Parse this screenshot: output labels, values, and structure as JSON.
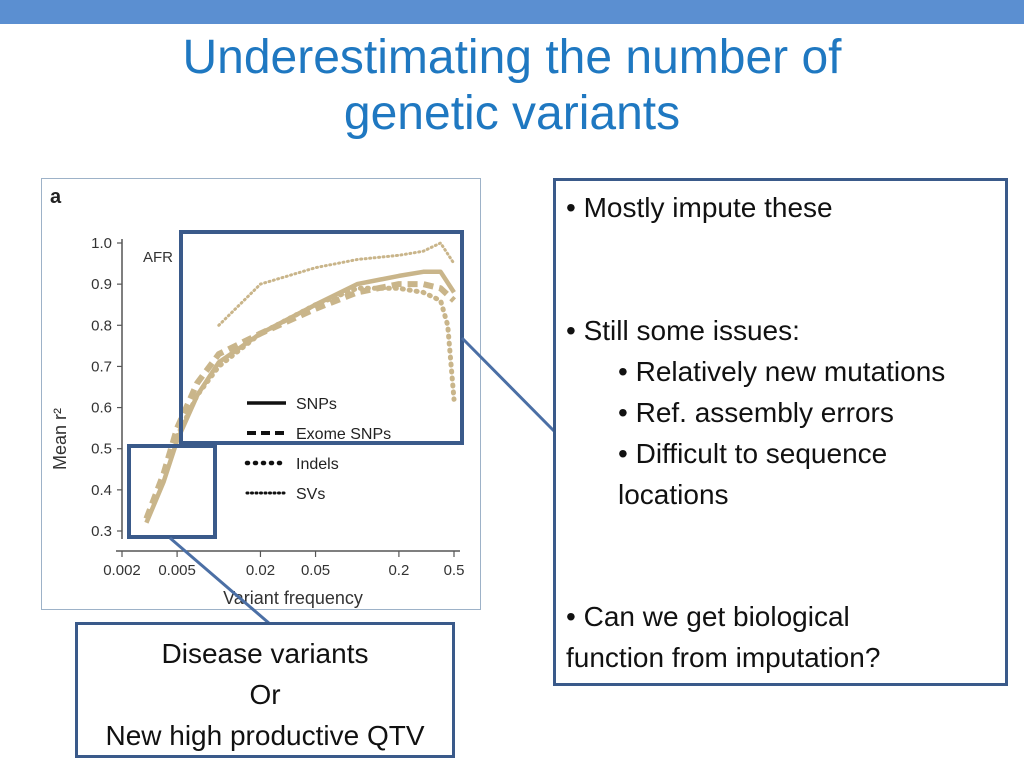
{
  "slide": {
    "title_line1": "Underestimating the number of",
    "title_line2": "genetic variants"
  },
  "right_box": {
    "bullet1": "Mostly impute these",
    "bullet2": "Still some issues:",
    "sub1": "Relatively new mutations",
    "sub2": "Ref. assembly errors",
    "sub3": "Difficult to sequence",
    "sub3_cont": "locations",
    "bullet3_line1": "Can we get biological",
    "bullet3_line2": "function from imputation?"
  },
  "bottom_box": {
    "line1": "Disease variants",
    "line2": "Or",
    "line3": "New high productive QTV"
  },
  "chart_data": {
    "type": "line",
    "panel_label": "a",
    "annotation": "AFR",
    "xlabel": "Variant frequency",
    "ylabel": "Mean r²",
    "x_scale": "log",
    "x_ticks": [
      0.002,
      0.005,
      0.02,
      0.05,
      0.2,
      0.5
    ],
    "x_tick_labels": [
      "0.002",
      "0.005",
      "0.02",
      "0.05",
      "0.2",
      "0.5"
    ],
    "y_ticks": [
      0.3,
      0.4,
      0.5,
      0.6,
      0.7,
      0.8,
      0.9,
      1.0
    ],
    "y_tick_labels": [
      "0.3",
      "0.4",
      "0.5",
      "0.6",
      "0.7",
      "0.8",
      "0.9",
      "1.0"
    ],
    "xlim": [
      0.002,
      0.5
    ],
    "ylim": [
      0.3,
      1.0
    ],
    "line_color": "#c9b58a",
    "legend_position": "center-right",
    "series": [
      {
        "name": "SNPs",
        "style": "solid",
        "x": [
          0.003,
          0.004,
          0.005,
          0.007,
          0.01,
          0.02,
          0.05,
          0.1,
          0.2,
          0.3,
          0.4,
          0.5
        ],
        "y": [
          0.32,
          0.42,
          0.52,
          0.63,
          0.71,
          0.78,
          0.85,
          0.9,
          0.92,
          0.93,
          0.93,
          0.88
        ]
      },
      {
        "name": "Exome SNPs",
        "style": "dashed",
        "x": [
          0.003,
          0.004,
          0.005,
          0.007,
          0.01,
          0.02,
          0.05,
          0.1,
          0.2,
          0.3,
          0.4,
          0.5
        ],
        "y": [
          0.33,
          0.44,
          0.55,
          0.66,
          0.73,
          0.78,
          0.84,
          0.88,
          0.9,
          0.9,
          0.89,
          0.86
        ]
      },
      {
        "name": "Indels",
        "style": "dotted",
        "x": [
          0.005,
          0.007,
          0.01,
          0.02,
          0.05,
          0.1,
          0.2,
          0.3,
          0.4,
          0.45,
          0.5
        ],
        "y": [
          0.53,
          0.63,
          0.7,
          0.78,
          0.85,
          0.89,
          0.89,
          0.88,
          0.86,
          0.8,
          0.62
        ]
      },
      {
        "name": "SVs",
        "style": "fine-dotted",
        "x": [
          0.01,
          0.02,
          0.05,
          0.1,
          0.2,
          0.3,
          0.4,
          0.5
        ],
        "y": [
          0.8,
          0.9,
          0.94,
          0.96,
          0.97,
          0.98,
          1.0,
          0.95
        ]
      }
    ]
  }
}
